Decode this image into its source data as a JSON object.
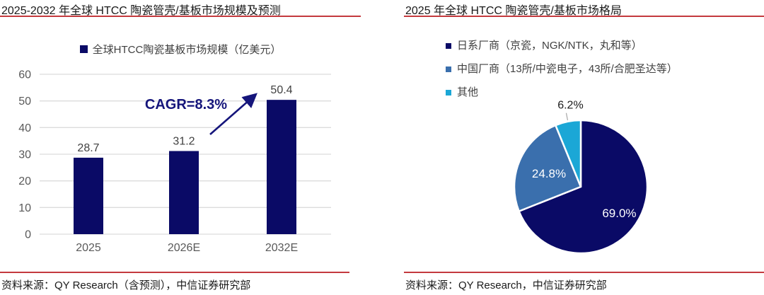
{
  "left_panel": {
    "title": "2025-2032 年全球 HTCC 陶瓷管壳/基板市场规模及预测",
    "legend_label": "全球HTCC陶瓷基板市场规模（亿美元）",
    "annotation": "CAGR=8.3%",
    "source": "资料来源：QY Research（含预测），中信证券研究部"
  },
  "right_panel": {
    "title": "2025 年全球 HTCC 陶瓷管壳/基板市场格局",
    "source": "资料来源：QY Research，中信证券研究部"
  },
  "colors": {
    "navy": "#0A0A66",
    "blue": "#3A6FAD",
    "cyan": "#1BA7D6",
    "annotation_navy": "#15157B",
    "red_rule": "#C43A3E",
    "grid": "#DCDCDC",
    "axis_text": "#595959",
    "value_text": "#404040",
    "pie_label_white": "#FFFFFF",
    "pie_label_dark": "#1A1A1A",
    "leader_gray": "#A6A6A6"
  },
  "chart_data": [
    {
      "type": "bar",
      "title": "2025-2032 年全球 HTCC 陶瓷管壳/基板市场规模及预测",
      "series_name": "全球HTCC陶瓷基板市场规模（亿美元）",
      "categories": [
        "2025",
        "2026E",
        "2032E"
      ],
      "values": [
        28.7,
        31.2,
        50.4
      ],
      "value_labels": [
        "28.7",
        "31.2",
        "50.4"
      ],
      "ylim": [
        0,
        60
      ],
      "yticks": [
        0,
        10,
        20,
        30,
        40,
        50,
        60
      ],
      "grid": true,
      "legend_position": "top",
      "annotation": "CAGR=8.3%"
    },
    {
      "type": "pie",
      "title": "2025 年全球 HTCC 陶瓷管壳/基板市场格局",
      "legend_position": "top",
      "slices": [
        {
          "label": "日系厂商（京瓷，NGK/NTK，丸和等）",
          "value": 69.0,
          "pct_label": "69.0%",
          "color": "#0A0A66"
        },
        {
          "label": "中国厂商（13所/中瓷电子，43所/合肥圣达等）",
          "value": 24.8,
          "pct_label": "24.8%",
          "color": "#3A6FAD"
        },
        {
          "label": "其他",
          "value": 6.2,
          "pct_label": "6.2%",
          "color": "#1BA7D6"
        }
      ]
    }
  ]
}
